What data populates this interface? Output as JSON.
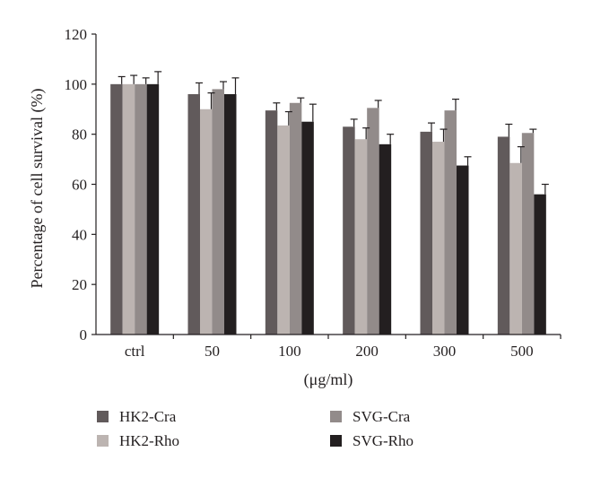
{
  "chart_data": {
    "type": "bar",
    "title": "",
    "xlabel": "(μg/ml)",
    "ylabel": "Percentage of cell survival (%)",
    "categories": [
      "ctrl",
      "50",
      "100",
      "200",
      "300",
      "500"
    ],
    "ylim": [
      0,
      120
    ],
    "yticks": [
      0,
      20,
      40,
      60,
      80,
      100,
      120
    ],
    "grid": false,
    "legend_position": "bottom",
    "series": [
      {
        "name": "HK2-Cra",
        "color": "#615a5b",
        "values": [
          100,
          96,
          89.5,
          83,
          81,
          79
        ],
        "errors": [
          3,
          4.5,
          3,
          3,
          3.5,
          5
        ]
      },
      {
        "name": "HK2-Rho",
        "color": "#bcb4b1",
        "values": [
          100,
          90,
          83.5,
          78,
          77,
          68.5
        ],
        "errors": [
          3.5,
          6.5,
          5.5,
          4.5,
          5,
          6.5
        ]
      },
      {
        "name": "SVG-Cra",
        "color": "#928b8a",
        "values": [
          100,
          98,
          92.5,
          90.5,
          89.5,
          80.5
        ],
        "errors": [
          2.5,
          3,
          2,
          3,
          4.5,
          1.5
        ]
      },
      {
        "name": "SVG-Rho",
        "color": "#231f20",
        "values": [
          100,
          96,
          85,
          76,
          67.5,
          56
        ],
        "errors": [
          5,
          6.5,
          7,
          4,
          3.5,
          4
        ]
      }
    ]
  }
}
